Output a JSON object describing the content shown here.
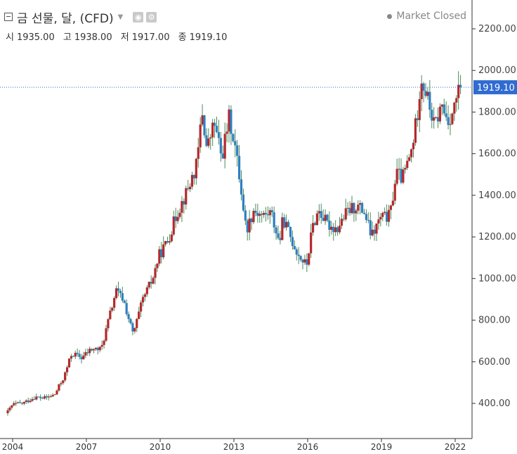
{
  "header": {
    "title": "금 선물, 달, (CFD)",
    "icons": [
      "collapse-icon",
      "caret-down-icon",
      "eye-icon",
      "gear-icon"
    ],
    "market_status": "Market Closed",
    "ohlc": [
      {
        "label": "시",
        "value": "1935.00"
      },
      {
        "label": "고",
        "value": "1938.00"
      },
      {
        "label": "저",
        "value": "1917.00"
      },
      {
        "label": "종",
        "value": "1919.10"
      }
    ]
  },
  "colors": {
    "up": "#b5282c",
    "down": "#2e7fc2",
    "wick": "#4d8a5b",
    "price_line": "#2f6bd1",
    "axis": "#333333"
  },
  "chart_data": {
    "type": "candlestick",
    "title": "",
    "xlabel": "",
    "ylabel": "",
    "last_price_label": "1919.10",
    "last_price": 1919.1,
    "ylim": [
      255,
      2270
    ],
    "xlim": [
      2003.75,
      2022.5
    ],
    "yticks": [
      "400.00",
      "600.00",
      "800.00",
      "1000.00",
      "1200.00",
      "1400.00",
      "1600.00",
      "1800.00",
      "2000.00",
      "2200.00"
    ],
    "ytick_values": [
      400,
      600,
      800,
      1000,
      1200,
      1400,
      1600,
      1800,
      2000,
      2200
    ],
    "xticks": [
      "2004",
      "2007",
      "2010",
      "2013",
      "2016",
      "2019",
      "2022"
    ],
    "xtick_values": [
      2004,
      2007,
      2010,
      2013,
      2016,
      2019,
      2022
    ],
    "close_path": [
      [
        2003.8,
        360
      ],
      [
        2004.0,
        395
      ],
      [
        2004.4,
        400
      ],
      [
        2004.9,
        430
      ],
      [
        2005.3,
        425
      ],
      [
        2005.7,
        440
      ],
      [
        2006.1,
        530
      ],
      [
        2006.4,
        640
      ],
      [
        2006.8,
        620
      ],
      [
        2007.2,
        660
      ],
      [
        2007.6,
        660
      ],
      [
        2007.9,
        800
      ],
      [
        2008.2,
        940
      ],
      [
        2008.5,
        900
      ],
      [
        2008.9,
        730
      ],
      [
        2009.3,
        900
      ],
      [
        2009.7,
        1000
      ],
      [
        2009.95,
        1110
      ],
      [
        2010.3,
        1180
      ],
      [
        2010.7,
        1320
      ],
      [
        2011.1,
        1420
      ],
      [
        2011.5,
        1550
      ],
      [
        2011.7,
        1810
      ],
      [
        2011.9,
        1620
      ],
      [
        2012.2,
        1750
      ],
      [
        2012.5,
        1580
      ],
      [
        2012.8,
        1770
      ],
      [
        2013.0,
        1670
      ],
      [
        2013.25,
        1470
      ],
      [
        2013.5,
        1230
      ],
      [
        2013.8,
        1330
      ],
      [
        2014.2,
        1300
      ],
      [
        2014.5,
        1320
      ],
      [
        2014.85,
        1170
      ],
      [
        2015.0,
        1290
      ],
      [
        2015.3,
        1200
      ],
      [
        2015.6,
        1120
      ],
      [
        2015.95,
        1060
      ],
      [
        2016.2,
        1250
      ],
      [
        2016.45,
        1330
      ],
      [
        2016.8,
        1260
      ],
      [
        2017.2,
        1240
      ],
      [
        2017.6,
        1320
      ],
      [
        2018.0,
        1350
      ],
      [
        2018.3,
        1320
      ],
      [
        2018.6,
        1200
      ],
      [
        2018.95,
        1290
      ],
      [
        2019.35,
        1300
      ],
      [
        2019.6,
        1510
      ],
      [
        2019.85,
        1480
      ],
      [
        2020.2,
        1600
      ],
      [
        2020.45,
        1780
      ],
      [
        2020.6,
        1970
      ],
      [
        2020.85,
        1880
      ],
      [
        2021.15,
        1730
      ],
      [
        2021.45,
        1830
      ],
      [
        2021.7,
        1760
      ],
      [
        2021.95,
        1810
      ],
      [
        2022.05,
        1870
      ],
      [
        2022.25,
        1919
      ]
    ]
  }
}
